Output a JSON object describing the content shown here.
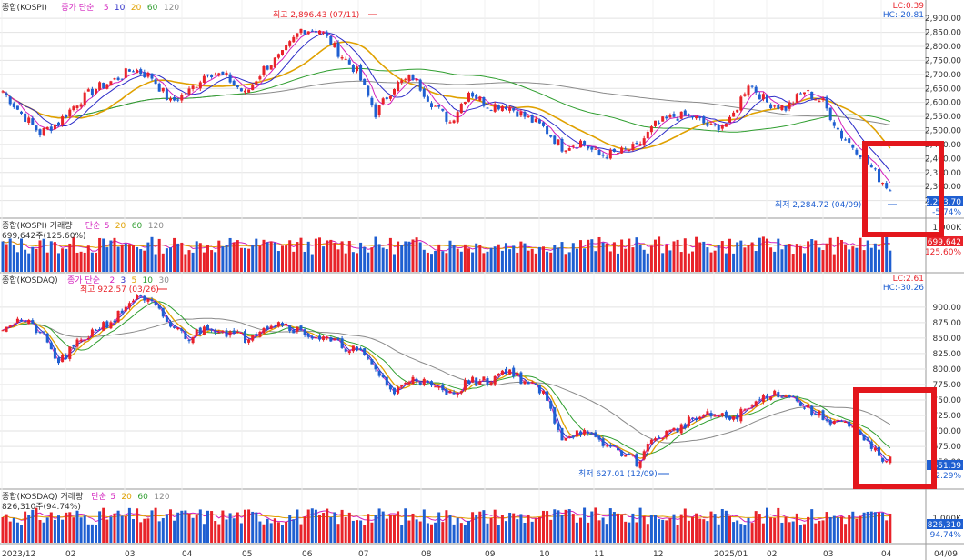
{
  "colors": {
    "up": "#e8232a",
    "down": "#1f5fd1",
    "ma5": "#d21fbd",
    "ma10": "#2c2cc8",
    "ma20": "#e0a100",
    "ma60": "#2f9e2f",
    "ma120": "#8a8a8a",
    "highlight": "#e3161c",
    "grid": "#e2e2e2",
    "axisText": "#333333"
  },
  "chart_data": [
    {
      "type": "candlestick",
      "name": "kospi-price",
      "panel_title": "종합(KOSPI)",
      "indicator_label": "종가 단순",
      "ma_periods": [
        "5",
        "10",
        "20",
        "60",
        "120"
      ],
      "ylim": [
        2200,
        2920
      ],
      "yticks": [
        "2,900.00",
        "2,850.00",
        "2,800.00",
        "2,750.00",
        "2,700.00",
        "2,650.00",
        "2,600.00",
        "2,550.00",
        "2,500.00",
        "2,450.00",
        "2,400.00",
        "2,350.00",
        "2,300.00",
        "2,250.00"
      ],
      "corner_labels": [
        "LC:0.39",
        "HC:-20.81"
      ],
      "last_label": "2,293.70",
      "last_pct": "-5.74%",
      "high_note": "최고 2,896.43 (07/11)",
      "low_note": "최저 2,284.72 (04/09)",
      "anchors": [
        [
          0,
          2640
        ],
        [
          5,
          2560
        ],
        [
          10,
          2490
        ],
        [
          15,
          2530
        ],
        [
          20,
          2600
        ],
        [
          25,
          2650
        ],
        [
          30,
          2680
        ],
        [
          35,
          2720
        ],
        [
          40,
          2690
        ],
        [
          45,
          2600
        ],
        [
          50,
          2640
        ],
        [
          55,
          2710
        ],
        [
          60,
          2690
        ],
        [
          65,
          2630
        ],
        [
          70,
          2720
        ],
        [
          75,
          2770
        ],
        [
          80,
          2860
        ],
        [
          85,
          2860
        ],
        [
          90,
          2780
        ],
        [
          95,
          2710
        ],
        [
          100,
          2560
        ],
        [
          105,
          2660
        ],
        [
          110,
          2690
        ],
        [
          115,
          2600
        ],
        [
          120,
          2530
        ],
        [
          125,
          2640
        ],
        [
          130,
          2590
        ],
        [
          135,
          2590
        ],
        [
          140,
          2550
        ],
        [
          145,
          2510
        ],
        [
          150,
          2440
        ],
        [
          155,
          2460
        ],
        [
          160,
          2410
        ],
        [
          165,
          2420
        ],
        [
          170,
          2440
        ],
        [
          175,
          2520
        ],
        [
          180,
          2550
        ],
        [
          185,
          2550
        ],
        [
          190,
          2510
        ],
        [
          195,
          2530
        ],
        [
          200,
          2670
        ],
        [
          205,
          2600
        ],
        [
          210,
          2580
        ],
        [
          215,
          2640
        ],
        [
          220,
          2600
        ],
        [
          225,
          2480
        ],
        [
          230,
          2420
        ],
        [
          235,
          2330
        ],
        [
          238,
          2290
        ]
      ]
    },
    {
      "type": "bar",
      "name": "kospi-volume",
      "panel_title": "종합(KOSPI) 거래량",
      "indicator_label": "단순",
      "ma_periods": [
        "5",
        "20",
        "60",
        "120"
      ],
      "info": "699,642주(125.60%)",
      "yticks": [
        "1,000K"
      ],
      "last_label": "699,642",
      "last_pct": "125.60%"
    },
    {
      "type": "candlestick",
      "name": "kosdaq-price",
      "panel_title": "종합(KOSDAQ)",
      "indicator_label": "종가 단순",
      "ma_periods": [
        "2",
        "3",
        "5",
        "10",
        "30"
      ],
      "ylim": [
        612,
        935
      ],
      "yticks": [
        "900.00",
        "875.00",
        "850.00",
        "825.00",
        "800.00",
        "775.00",
        "750.00",
        "725.00",
        "700.00",
        "675.00",
        "650.00"
      ],
      "corner_labels": [
        "LC:2.61",
        "HC:-30.26"
      ],
      "last_label": "651.39",
      "last_pct": "-2.29%",
      "high_note": "최고 922.57 (03/26)",
      "low_note": "최저 627.01 (12/09)",
      "anchors": [
        [
          0,
          870
        ],
        [
          5,
          880
        ],
        [
          10,
          860
        ],
        [
          15,
          810
        ],
        [
          20,
          840
        ],
        [
          25,
          865
        ],
        [
          30,
          880
        ],
        [
          35,
          915
        ],
        [
          40,
          905
        ],
        [
          45,
          870
        ],
        [
          50,
          850
        ],
        [
          55,
          870
        ],
        [
          60,
          860
        ],
        [
          65,
          850
        ],
        [
          70,
          870
        ],
        [
          75,
          875
        ],
        [
          80,
          860
        ],
        [
          85,
          850
        ],
        [
          90,
          840
        ],
        [
          95,
          830
        ],
        [
          100,
          800
        ],
        [
          105,
          760
        ],
        [
          110,
          790
        ],
        [
          115,
          770
        ],
        [
          120,
          760
        ],
        [
          125,
          780
        ],
        [
          130,
          780
        ],
        [
          135,
          800
        ],
        [
          140,
          780
        ],
        [
          145,
          760
        ],
        [
          150,
          690
        ],
        [
          155,
          700
        ],
        [
          160,
          680
        ],
        [
          165,
          670
        ],
        [
          170,
          650
        ],
        [
          175,
          690
        ],
        [
          180,
          700
        ],
        [
          185,
          720
        ],
        [
          190,
          725
        ],
        [
          195,
          720
        ],
        [
          200,
          735
        ],
        [
          205,
          760
        ],
        [
          210,
          760
        ],
        [
          215,
          740
        ],
        [
          220,
          720
        ],
        [
          225,
          715
        ],
        [
          230,
          690
        ],
        [
          235,
          660
        ],
        [
          238,
          651
        ]
      ]
    },
    {
      "type": "bar",
      "name": "kosdaq-volume",
      "panel_title": "종합(KOSDAQ) 거래량",
      "indicator_label": "단순",
      "ma_periods": [
        "5",
        "20",
        "60",
        "120"
      ],
      "info": "826,310주(94.74%)",
      "yticks": [
        "1,000K"
      ],
      "last_label": "826,310",
      "last_pct": "94.74%"
    }
  ],
  "x_axis": [
    "2023/12",
    "02",
    "03",
    "04",
    "05",
    "06",
    "07",
    "08",
    "09",
    "10",
    "11",
    "12",
    "2025/01",
    "02",
    "03",
    "04",
    "04/09"
  ]
}
